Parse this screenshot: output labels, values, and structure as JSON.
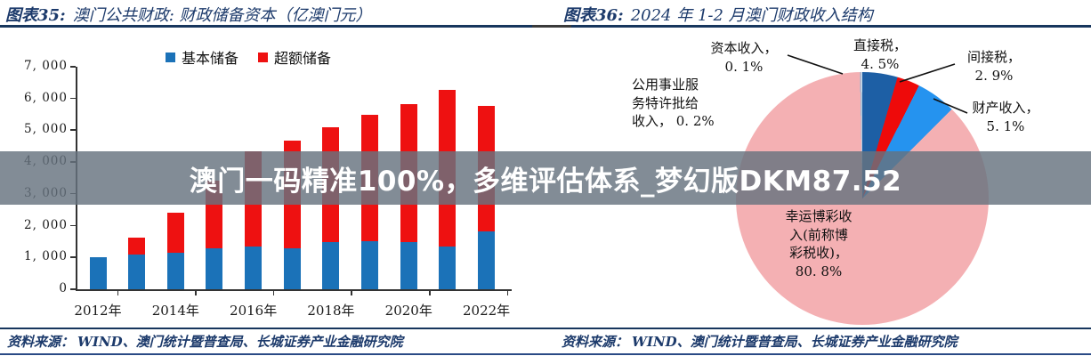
{
  "page": {
    "watermark_text": "澳门一码精准100%，多维评估体系_梦幻版DKM87.52"
  },
  "left_panel": {
    "figure_label": "图表35:",
    "title": "澳门公共财政:  财政储备资本（亿澳门元）",
    "source_label": "资料来源：",
    "source_text": "WIND、澳门统计暨普查局、长城证券产业金融研究院"
  },
  "right_panel": {
    "figure_label": "图表36:",
    "title": "2024 年 1-2 月澳门财政收入结构",
    "source_label": "资料来源：",
    "source_text": "WIND、澳门统计暨普查局、长城证券产业金融研究院",
    "pie_labels": {
      "capital": "资本收入，\n0. 1%",
      "direct": "直接税，\n4. 5%",
      "indirect": "间接税，\n2. 9%",
      "property": "财产收入，\n5. 1%",
      "utility": "公用事业服\n务特许批给\n收入， 0. 2%",
      "gaming": "幸运博彩收\n入(前称博\n彩税收)，\n80. 8%"
    }
  },
  "chart_data": [
    {
      "type": "bar",
      "stacked": true,
      "figure_label": "图表35:",
      "title": "澳门公共财政: 财政储备资本（亿澳门元）",
      "unit": "亿澳门元",
      "categories": [
        "2012",
        "2013",
        "2014",
        "2015",
        "2016",
        "2017",
        "2018",
        "2019",
        "2020",
        "2021",
        "2022"
      ],
      "series": [
        {
          "name": "基本储备",
          "color": "#1b72b8",
          "values": [
            1000,
            1090,
            1140,
            1280,
            1350,
            1280,
            1480,
            1500,
            1480,
            1350,
            1820
          ]
        },
        {
          "name": "超额储备",
          "color": "#ee1111",
          "values": [
            0,
            540,
            1270,
            2140,
            2990,
            3400,
            3620,
            3990,
            4350,
            4930,
            3960
          ]
        }
      ],
      "totals": [
        1000,
        1630,
        2410,
        3420,
        4340,
        4680,
        5100,
        5490,
        5830,
        6280,
        5780
      ],
      "ylim": [
        0,
        7000
      ],
      "y_ticks": [
        "0",
        "1, 000",
        "2, 000",
        "3, 000",
        "4, 000",
        "5, 000",
        "6, 000",
        "7, 000"
      ],
      "x_tick_labels": [
        "2012年",
        "2014年",
        "2016年",
        "2018年",
        "2020年",
        "2022年"
      ],
      "grid": false,
      "legend_position": "top-center"
    },
    {
      "type": "pie",
      "figure_label": "图表36:",
      "title": "2024 年 1-2 月澳门财政收入结构",
      "start_angle_deg": 0,
      "direction": "clockwise",
      "slices": [
        {
          "label": "直接税",
          "pct": 4.5,
          "color": "#1d5fa5"
        },
        {
          "label": "间接税",
          "pct": 2.9,
          "color": "#ee0a0a"
        },
        {
          "label": "财产收入",
          "pct": 5.1,
          "color": "#2593ef"
        },
        {
          "label": "幸运博彩收入(前称博彩税收)",
          "pct": 80.8,
          "color": "#f4b0b3"
        },
        {
          "label": "公用事业服务特许批给收入",
          "pct": 0.2,
          "color": "#9fb8d2"
        },
        {
          "label": "资本收入",
          "pct": 0.1,
          "color": "#d7e3ee"
        }
      ]
    }
  ]
}
